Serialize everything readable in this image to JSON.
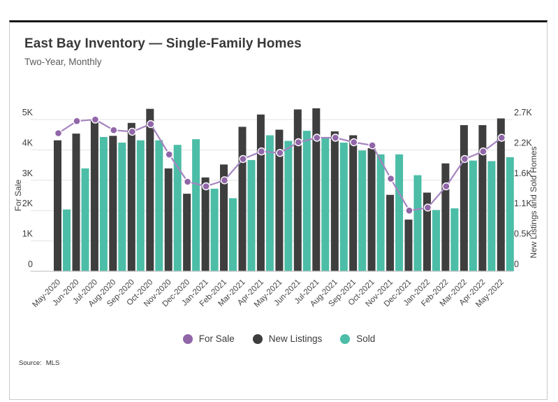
{
  "card": {
    "title": "East Bay Inventory — Single-Family Homes",
    "subtitle": "Two-Year, Monthly",
    "source_label": "Source:",
    "source_value": "MLS"
  },
  "legend": {
    "items": [
      {
        "label": "For Sale",
        "color": "#9166a8"
      },
      {
        "label": "New Listings",
        "color": "#3e3e3e"
      },
      {
        "label": "Sold",
        "color": "#4cbda7"
      }
    ]
  },
  "chart_data": {
    "type": "combo",
    "title": "East Bay Inventory — Single-Family Homes",
    "subtitle": "Two-Year, Monthly",
    "categories": [
      "May-2020",
      "Jun-2020",
      "Jul-2020",
      "Aug-2020",
      "Sep-2020",
      "Oct-2020",
      "Nov-2020",
      "Dec-2020",
      "Jan-2021",
      "Feb-2021",
      "Mar-2021",
      "Apr-2021",
      "May-2021",
      "Jun-2021",
      "Jul-2021",
      "Aug-2021",
      "Sep-2021",
      "Oct-2021",
      "Nov-2021",
      "Dec-2021",
      "Jan-2022",
      "Feb-2022",
      "Mar-2022",
      "Apr-2022",
      "May-2022"
    ],
    "series": [
      {
        "name": "For Sale",
        "kind": "line",
        "axis": "left",
        "color": "#a584c0",
        "marker_color": "#9166a8",
        "values": [
          4550,
          4950,
          5000,
          4650,
          4600,
          4850,
          3850,
          2950,
          2800,
          3000,
          3700,
          3950,
          3900,
          4250,
          4400,
          4400,
          4250,
          4150,
          3050,
          2000,
          2100,
          2800,
          3700,
          3950,
          4400
        ]
      },
      {
        "name": "New Listings",
        "kind": "bar",
        "axis": "right",
        "color": "#3e3e3e",
        "values": [
          2330,
          2450,
          2680,
          2410,
          2640,
          2890,
          1830,
          1380,
          1670,
          1900,
          2570,
          2790,
          2520,
          2880,
          2900,
          2490,
          2420,
          2190,
          1360,
          920,
          1400,
          1920,
          2600,
          2600,
          2720
        ]
      },
      {
        "name": "Sold",
        "kind": "bar",
        "axis": "right",
        "color": "#4cbda7",
        "values": [
          1100,
          1830,
          2390,
          2290,
          2330,
          2330,
          2250,
          2350,
          1470,
          1300,
          1980,
          2420,
          2320,
          2500,
          2370,
          2290,
          2150,
          2080,
          2080,
          1710,
          1090,
          1120,
          1970,
          1960,
          2030
        ]
      }
    ],
    "left_axis": {
      "title": "For Sale",
      "min": 0,
      "max": 5000,
      "ticks": [
        {
          "value": 0,
          "label": "0"
        },
        {
          "value": 1000,
          "label": "1K"
        },
        {
          "value": 2000,
          "label": "2K"
        },
        {
          "value": 3000,
          "label": "3K"
        },
        {
          "value": 4000,
          "label": "4K"
        },
        {
          "value": 5000,
          "label": "5K"
        }
      ]
    },
    "right_axis": {
      "title": "New Listings and Sold Homes",
      "min": 0,
      "max": 2700,
      "ticks": [
        {
          "value": 0,
          "label": "0"
        },
        {
          "value": 540,
          "label": "0.5K"
        },
        {
          "value": 1080,
          "label": "1.1K"
        },
        {
          "value": 1620,
          "label": "1.6K"
        },
        {
          "value": 2160,
          "label": "2.2K"
        },
        {
          "value": 2700,
          "label": "2.7K"
        }
      ]
    },
    "grid": true,
    "legend_position": "bottom"
  }
}
